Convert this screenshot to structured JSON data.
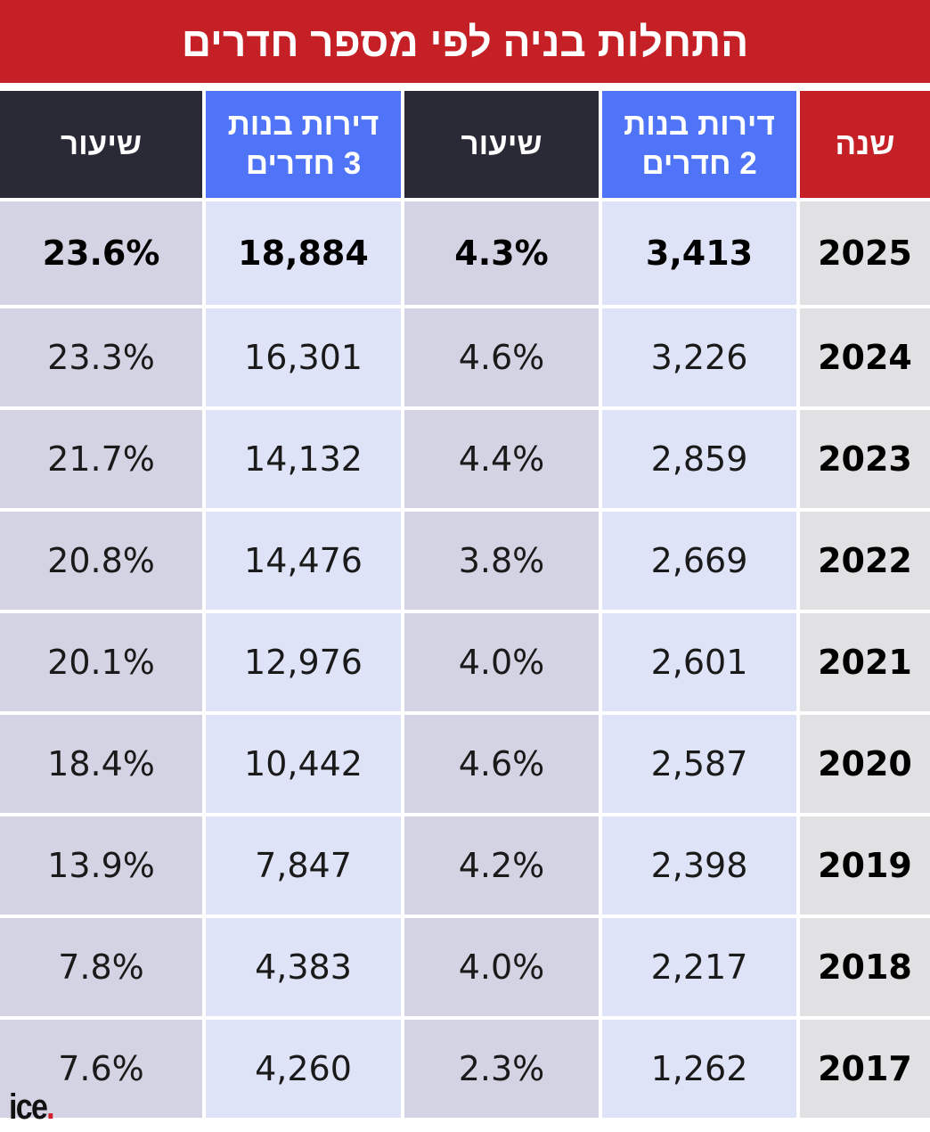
{
  "title": "התחלות בניה לפי מספר חדרים",
  "colors": {
    "red": "#c42026",
    "blue": "#4f74f7",
    "dark": "#2a2a36"
  },
  "logo": "ice.",
  "chart_data": {
    "type": "table",
    "title": "התחלות בניה לפי מספר חדרים",
    "columns": [
      "שנה",
      "דירות בנות 2 חדרים",
      "שיעור",
      "דירות בנות 3 חדרים",
      "שיעור"
    ],
    "column_lines": [
      [
        "שנה"
      ],
      [
        "דירות בנות",
        "2 חדרים"
      ],
      [
        "שיעור"
      ],
      [
        "דירות בנות",
        "3 חדרים"
      ],
      [
        "שיעור"
      ]
    ],
    "rows": [
      [
        "2025",
        "3,413",
        "4.3%",
        "18,884",
        "23.6%"
      ],
      [
        "2024",
        "3,226",
        "4.6%",
        "16,301",
        "23.3%"
      ],
      [
        "2023",
        "2,859",
        "4.4%",
        "14,132",
        "21.7%"
      ],
      [
        "2022",
        "2,669",
        "3.8%",
        "14,476",
        "20.8%"
      ],
      [
        "2021",
        "2,601",
        "4.0%",
        "12,976",
        "20.1%"
      ],
      [
        "2020",
        "2,587",
        "4.6%",
        "10,442",
        "18.4%"
      ],
      [
        "2019",
        "2,398",
        "4.2%",
        "7,847",
        "13.9%"
      ],
      [
        "2018",
        "2,217",
        "4.0%",
        "4,383",
        "7.8%"
      ],
      [
        "2017",
        "1,262",
        "2.3%",
        "4,260",
        "7.6%"
      ]
    ]
  }
}
